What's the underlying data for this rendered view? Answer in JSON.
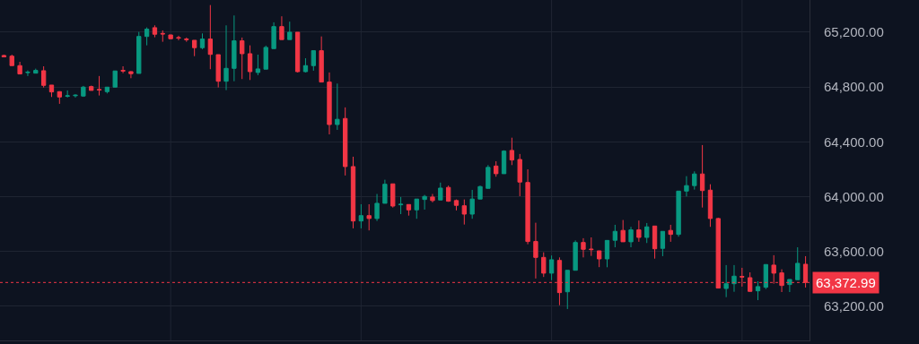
{
  "chart_data": {
    "type": "candlestick",
    "categories": [
      null,
      null,
      null,
      null,
      null,
      null,
      null,
      null,
      null,
      null,
      null,
      null,
      null,
      null,
      null,
      null,
      null,
      null,
      null,
      null,
      null,
      null,
      null,
      null,
      null,
      null,
      null,
      null,
      null,
      null,
      null,
      null,
      null,
      null,
      null,
      null,
      null,
      null,
      null,
      null,
      null,
      null,
      null,
      null,
      null,
      null,
      null,
      null,
      null,
      null,
      null,
      null,
      null,
      null,
      null,
      null,
      null,
      null,
      null,
      null,
      null,
      null,
      null,
      null,
      null,
      null,
      null,
      null,
      null,
      null,
      null,
      null,
      null,
      null,
      null,
      null,
      null,
      null,
      null,
      null,
      null,
      null,
      null,
      null,
      null,
      null,
      null,
      null,
      null,
      null,
      null,
      null,
      null,
      null,
      null,
      null,
      null,
      null,
      null,
      null,
      null,
      null
    ],
    "ohlc": [
      [
        65030,
        65036,
        65020,
        65020
      ],
      [
        65025,
        65036,
        64956,
        64956
      ],
      [
        64956,
        64984,
        64895,
        64895
      ],
      [
        64905,
        64921,
        64880,
        64908
      ],
      [
        64901,
        64934,
        64901,
        64921
      ],
      [
        64919,
        64951,
        64796,
        64812
      ],
      [
        64814,
        64814,
        64727,
        64764
      ],
      [
        64766,
        64769,
        64677,
        64727
      ],
      [
        64732,
        64775,
        64723,
        64736
      ],
      [
        64736,
        64747,
        64723,
        64740
      ],
      [
        64734,
        64808,
        64728,
        64799
      ],
      [
        64803,
        64810,
        64775,
        64775
      ],
      [
        64782,
        64880,
        64738,
        64778
      ],
      [
        64766,
        64799,
        64753,
        64799
      ],
      [
        64799,
        64917,
        64799,
        64917
      ],
      [
        64921,
        64951,
        64901,
        64917
      ],
      [
        64912,
        64915,
        64864,
        64897
      ],
      [
        64899,
        65202,
        64899,
        65169
      ],
      [
        65169,
        65235,
        65104,
        65222
      ],
      [
        65233,
        65250,
        65163,
        65185
      ],
      [
        65191,
        65213,
        65130,
        65187
      ],
      [
        65180,
        65182,
        65150,
        65152
      ],
      [
        65161,
        65174,
        65141,
        65157
      ],
      [
        65150,
        65161,
        65130,
        65146
      ],
      [
        65141,
        65141,
        65025,
        65087
      ],
      [
        65087,
        65191,
        65076,
        65150
      ],
      [
        65150,
        65398,
        64930,
        65038
      ],
      [
        65036,
        65036,
        64797,
        64842
      ],
      [
        64842,
        65250,
        64777,
        64936
      ],
      [
        64936,
        65322,
        64842,
        65137
      ],
      [
        65137,
        65161,
        64858,
        65043
      ],
      [
        65043,
        65104,
        64851,
        64912
      ],
      [
        64906,
        65036,
        64886,
        64932
      ],
      [
        64930,
        65102,
        64930,
        65089
      ],
      [
        65080,
        65272,
        65080,
        65241
      ],
      [
        65241,
        65316,
        65146,
        65146
      ],
      [
        65146,
        65277,
        65146,
        65200
      ],
      [
        65200,
        65200,
        64906,
        64912
      ],
      [
        64912,
        65010,
        64906,
        64956
      ],
      [
        64956,
        65065,
        64919,
        65065
      ],
      [
        65065,
        65169,
        64836,
        64836
      ],
      [
        64836,
        64906,
        64454,
        64526
      ],
      [
        64526,
        64825,
        64487,
        64564
      ],
      [
        64570,
        64651,
        64154,
        64219
      ],
      [
        64219,
        64291,
        63768,
        63822
      ],
      [
        63822,
        63944,
        63768,
        63861
      ],
      [
        63861,
        63944,
        63753,
        63840
      ],
      [
        63840,
        64019,
        63822,
        63951
      ],
      [
        63951,
        64123,
        63951,
        64090
      ],
      [
        64093,
        64093,
        63920,
        63931
      ],
      [
        63940,
        63997,
        63872,
        63944
      ],
      [
        63942,
        63944,
        63861,
        63903
      ],
      [
        63903,
        63982,
        63838,
        63982
      ],
      [
        63979,
        64012,
        63905,
        64001
      ],
      [
        63997,
        64019,
        63958,
        63971
      ],
      [
        63975,
        64102,
        63975,
        64062
      ],
      [
        64067,
        64080,
        63962,
        63966
      ],
      [
        63971,
        63979,
        63899,
        63936
      ],
      [
        63933,
        63979,
        63796,
        63872
      ],
      [
        63872,
        64049,
        63838,
        63982
      ],
      [
        63982,
        64080,
        63982,
        64073
      ],
      [
        64060,
        64230,
        64060,
        64213
      ],
      [
        64223,
        64258,
        64145,
        64167
      ],
      [
        64167,
        64338,
        64167,
        64332
      ],
      [
        64337,
        64430,
        64230,
        64267
      ],
      [
        64271,
        64311,
        64003,
        64106
      ],
      [
        64103,
        64199,
        63652,
        63672
      ],
      [
        63672,
        63809,
        63402,
        63556
      ],
      [
        63556,
        63593,
        63413,
        63441
      ],
      [
        63441,
        63570,
        63390,
        63539
      ],
      [
        63534,
        63556,
        63207,
        63299
      ],
      [
        63305,
        63462,
        63179,
        63462
      ],
      [
        63462,
        63680,
        63462,
        63665
      ],
      [
        63665,
        63696,
        63556,
        63615
      ],
      [
        63617,
        63702,
        63567,
        63613
      ],
      [
        63604,
        63604,
        63485,
        63545
      ],
      [
        63545,
        63680,
        63484,
        63680
      ],
      [
        63681,
        63794,
        63630,
        63746
      ],
      [
        63753,
        63829,
        63670,
        63670
      ],
      [
        63670,
        63779,
        63630,
        63757
      ],
      [
        63757,
        63825,
        63670,
        63702
      ],
      [
        63702,
        63807,
        63661,
        63779
      ],
      [
        63785,
        63785,
        63547,
        63619
      ],
      [
        63622,
        63746,
        63565,
        63746
      ],
      [
        63753,
        63794,
        63670,
        63724
      ],
      [
        63724,
        64040,
        63707,
        64040
      ],
      [
        64040,
        64149,
        64001,
        64080
      ],
      [
        64080,
        64184,
        64051,
        64165
      ],
      [
        64165,
        64376,
        63920,
        64044
      ],
      [
        64047,
        64090,
        63779,
        63840
      ],
      [
        63840,
        63846,
        63330,
        63332
      ],
      [
        63329,
        63500,
        63266,
        63364
      ],
      [
        63364,
        63500,
        63305,
        63419
      ],
      [
        63417,
        63480,
        63343,
        63413
      ],
      [
        63408,
        63447,
        63305,
        63308
      ],
      [
        63312,
        63382,
        63244,
        63343
      ],
      [
        63338,
        63504,
        63325,
        63504
      ],
      [
        63500,
        63572,
        63364,
        63441
      ],
      [
        63443,
        63469,
        63303,
        63351
      ],
      [
        63358,
        63395,
        63303,
        63395
      ],
      [
        63393,
        63630,
        63393,
        63513
      ],
      [
        63506,
        63565,
        63336,
        63373
      ]
    ],
    "colors": [
      "#f23645",
      "#f23645",
      "#f23645",
      "#089981",
      "#089981",
      "#f23645",
      "#f23645",
      "#f23645",
      "#089981",
      "#089981",
      "#089981",
      "#f23645",
      "#f23645",
      "#089981",
      "#089981",
      "#f23645",
      "#f23645",
      "#089981",
      "#089981",
      "#f23645",
      "#f23645",
      "#f23645",
      "#f23645",
      "#f23645",
      "#f23645",
      "#089981",
      "#f23645",
      "#f23645",
      "#089981",
      "#089981",
      "#f23645",
      "#f23645",
      "#089981",
      "#089981",
      "#089981",
      "#f23645",
      "#089981",
      "#f23645",
      "#089981",
      "#089981",
      "#f23645",
      "#f23645",
      "#089981",
      "#f23645",
      "#f23645",
      "#089981",
      "#f23645",
      "#089981",
      "#089981",
      "#f23645",
      "#089981",
      "#f23645",
      "#089981",
      "#089981",
      "#f23645",
      "#089981",
      "#f23645",
      "#f23645",
      "#f23645",
      "#089981",
      "#089981",
      "#089981",
      "#f23645",
      "#089981",
      "#f23645",
      "#f23645",
      "#f23645",
      "#f23645",
      "#f23645",
      "#089981",
      "#f23645",
      "#089981",
      "#089981",
      "#f23645",
      "#f23645",
      "#f23645",
      "#089981",
      "#089981",
      "#f23645",
      "#089981",
      "#f23645",
      "#089981",
      "#f23645",
      "#089981",
      "#f23645",
      "#089981",
      "#089981",
      "#089981",
      "#f23645",
      "#f23645",
      "#f23645",
      "#089981",
      "#089981",
      "#f23645",
      "#f23645",
      "#089981",
      "#089981",
      "#f23645",
      "#f23645",
      "#089981",
      "#089981",
      "#f23645"
    ],
    "ylim": [
      62950,
      65435
    ],
    "yticks": [
      {
        "value": 63200,
        "label": "63,200.00"
      },
      {
        "value": 63600,
        "label": "63,600.00"
      },
      {
        "value": 64000,
        "label": "64,000.00"
      },
      {
        "value": 64400,
        "label": "64,400.00"
      },
      {
        "value": 64800,
        "label": "64,800.00"
      },
      {
        "value": 65200,
        "label": "65,200.00"
      }
    ],
    "ref_lines": [
      {
        "axis": "y",
        "value": 63372.99,
        "label": "63,372.99",
        "color": "#f23645",
        "line_style": "dotted"
      }
    ],
    "grid": true,
    "tick_labels": "y"
  }
}
